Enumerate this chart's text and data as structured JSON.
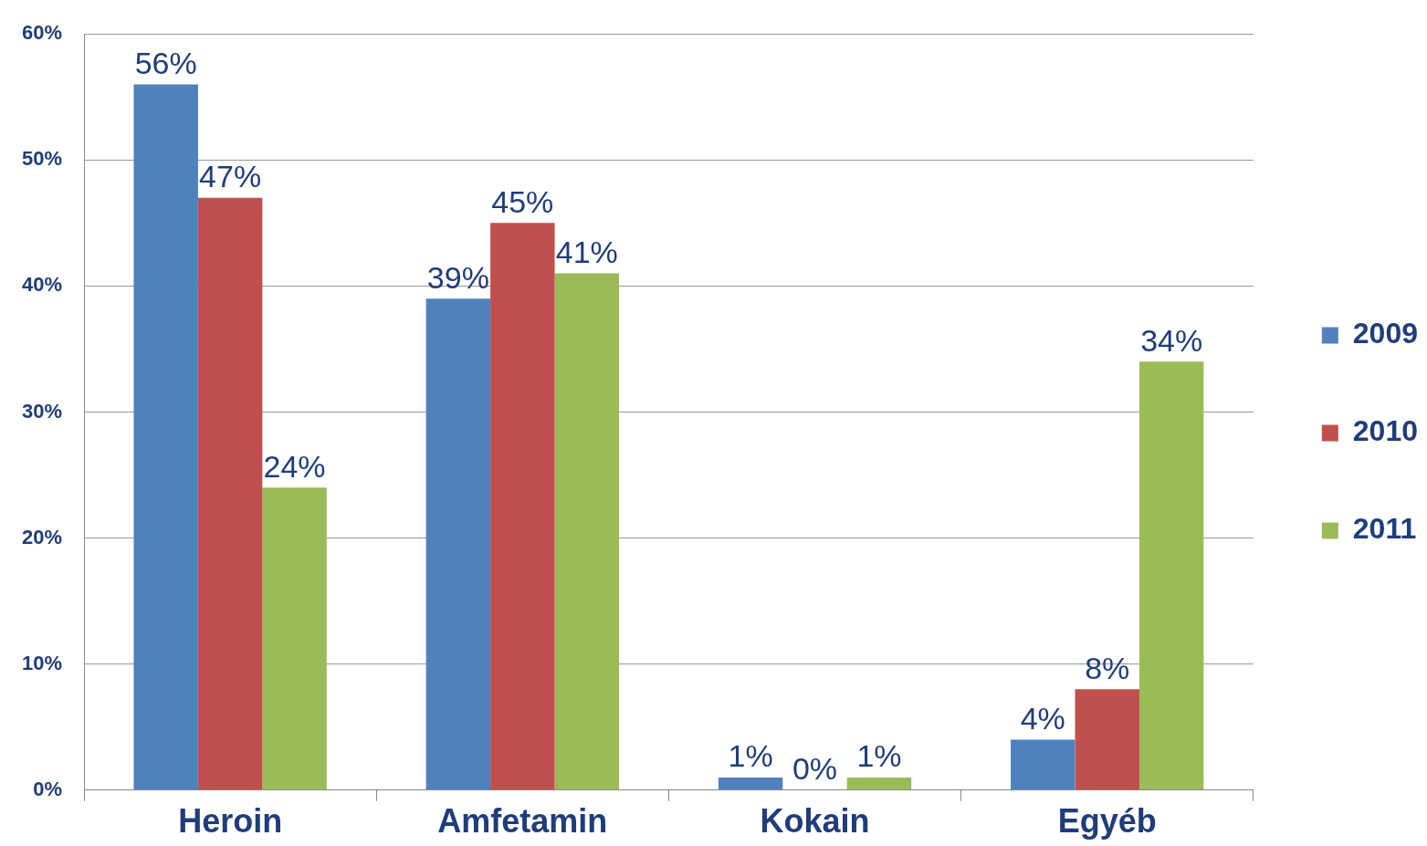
{
  "chart_data": {
    "type": "bar",
    "categories": [
      "Heroin",
      "Amfetamin",
      "Kokain",
      "Egyéb"
    ],
    "series": [
      {
        "name": "2009",
        "color": "#4f81bd",
        "values": [
          56,
          39,
          1,
          4
        ],
        "value_labels": [
          "56%",
          "39%",
          "1%",
          "4%"
        ]
      },
      {
        "name": "2010",
        "color": "#c0504d",
        "values": [
          47,
          45,
          0,
          8
        ],
        "value_labels": [
          "47%",
          "45%",
          "0%",
          "8%"
        ]
      },
      {
        "name": "2011",
        "color": "#9bbb59",
        "values": [
          24,
          41,
          1,
          34
        ],
        "value_labels": [
          "24%",
          "41%",
          "1%",
          "34%"
        ]
      }
    ],
    "ylim": [
      0,
      60
    ],
    "yticks": [
      {
        "value": 0,
        "label": "0%"
      },
      {
        "value": 10,
        "label": "10%"
      },
      {
        "value": 20,
        "label": "20%"
      },
      {
        "value": 30,
        "label": "30%"
      },
      {
        "value": 40,
        "label": "40%"
      },
      {
        "value": 50,
        "label": "50%"
      },
      {
        "value": 60,
        "label": "60%"
      }
    ],
    "grid": "y",
    "legend": "right"
  }
}
